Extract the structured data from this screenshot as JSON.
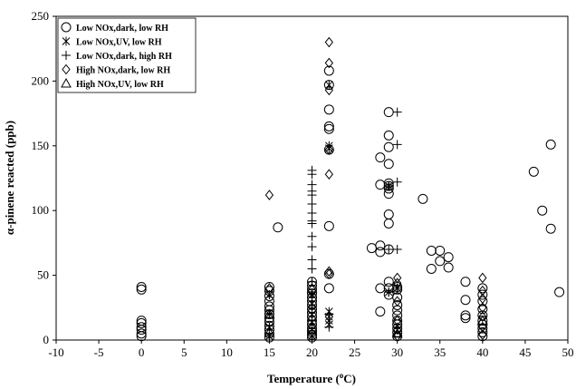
{
  "chart_data": {
    "type": "scatter",
    "xlabel_main": "Temperature (",
    "xlabel_sup": "o",
    "xlabel_end": "C)",
    "ylabel": "α-pinene reacted (ppb)",
    "xlim": [
      -10,
      50
    ],
    "ylim": [
      0,
      250
    ],
    "xticks": [
      -10,
      -5,
      0,
      5,
      10,
      15,
      20,
      25,
      30,
      35,
      40,
      45,
      50
    ],
    "yticks": [
      0,
      50,
      100,
      150,
      200,
      250
    ],
    "grid": false,
    "legend_position": "top-left",
    "series": [
      {
        "name": "Low NOx,dark, low RH",
        "marker": "circle",
        "points": [
          [
            0,
            3
          ],
          [
            0,
            5
          ],
          [
            0,
            8
          ],
          [
            0,
            10
          ],
          [
            0,
            13
          ],
          [
            0,
            15
          ],
          [
            0,
            39
          ],
          [
            0,
            41
          ],
          [
            15,
            2
          ],
          [
            15,
            5
          ],
          [
            15,
            8
          ],
          [
            15,
            11
          ],
          [
            15,
            14
          ],
          [
            15,
            17
          ],
          [
            15,
            20
          ],
          [
            15,
            23
          ],
          [
            15,
            26
          ],
          [
            15,
            30
          ],
          [
            15,
            34
          ],
          [
            15,
            38
          ],
          [
            15,
            41
          ],
          [
            16,
            87
          ],
          [
            20,
            2
          ],
          [
            20,
            4
          ],
          [
            20,
            6
          ],
          [
            20,
            9
          ],
          [
            20,
            12
          ],
          [
            20,
            15
          ],
          [
            20,
            18
          ],
          [
            20,
            21
          ],
          [
            20,
            24
          ],
          [
            20,
            27
          ],
          [
            20,
            30
          ],
          [
            20,
            33
          ],
          [
            20,
            36
          ],
          [
            20,
            39
          ],
          [
            20,
            42
          ],
          [
            20,
            45
          ],
          [
            22,
            40
          ],
          [
            22,
            51
          ],
          [
            22,
            88
          ],
          [
            22,
            147
          ],
          [
            22,
            163
          ],
          [
            22,
            165
          ],
          [
            22,
            178
          ],
          [
            22,
            197
          ],
          [
            22,
            208
          ],
          [
            28,
            22
          ],
          [
            28,
            40
          ],
          [
            28,
            68
          ],
          [
            28,
            73
          ],
          [
            28,
            120
          ],
          [
            28,
            141
          ],
          [
            29,
            35
          ],
          [
            29,
            40
          ],
          [
            29,
            45
          ],
          [
            29,
            70
          ],
          [
            29,
            90
          ],
          [
            29,
            97
          ],
          [
            29,
            113
          ],
          [
            29,
            117
          ],
          [
            29,
            121
          ],
          [
            29,
            136
          ],
          [
            29,
            149
          ],
          [
            29,
            158
          ],
          [
            29,
            176
          ],
          [
            27,
            71
          ],
          [
            29,
            119
          ],
          [
            30,
            3
          ],
          [
            30,
            6
          ],
          [
            30,
            9
          ],
          [
            30,
            12
          ],
          [
            30,
            15
          ],
          [
            30,
            19
          ],
          [
            30,
            23
          ],
          [
            30,
            27
          ],
          [
            30,
            33
          ],
          [
            30,
            39
          ],
          [
            30,
            41
          ],
          [
            33,
            109
          ],
          [
            34,
            55
          ],
          [
            34,
            69
          ],
          [
            35,
            61
          ],
          [
            35,
            69
          ],
          [
            36,
            56
          ],
          [
            36,
            64
          ],
          [
            38,
            17
          ],
          [
            38,
            19
          ],
          [
            38,
            31
          ],
          [
            38,
            45
          ],
          [
            40,
            3
          ],
          [
            40,
            6
          ],
          [
            40,
            9
          ],
          [
            40,
            12
          ],
          [
            40,
            15
          ],
          [
            40,
            19
          ],
          [
            40,
            24
          ],
          [
            40,
            30
          ],
          [
            40,
            35
          ],
          [
            40,
            40
          ],
          [
            46,
            130
          ],
          [
            47,
            100
          ],
          [
            48,
            86
          ],
          [
            48,
            151
          ],
          [
            49,
            37
          ]
        ]
      },
      {
        "name": "Low NOx,UV, low RH",
        "marker": "asterisk",
        "points": [
          [
            15,
            3
          ],
          [
            15,
            10
          ],
          [
            15,
            20
          ],
          [
            15,
            35
          ],
          [
            20,
            3
          ],
          [
            20,
            8
          ],
          [
            20,
            14
          ],
          [
            20,
            20
          ],
          [
            20,
            28
          ],
          [
            20,
            35
          ],
          [
            22,
            12
          ],
          [
            22,
            15
          ],
          [
            22,
            18
          ],
          [
            22,
            22
          ],
          [
            22,
            148
          ],
          [
            22,
            150
          ],
          [
            22,
            197
          ],
          [
            29,
            37
          ],
          [
            29,
            119
          ],
          [
            30,
            40
          ]
        ]
      },
      {
        "name": "Low NOx,dark, high RH",
        "marker": "plus",
        "points": [
          [
            20,
            5
          ],
          [
            20,
            15
          ],
          [
            20,
            25
          ],
          [
            20,
            35
          ],
          [
            20,
            45
          ],
          [
            20,
            55
          ],
          [
            20,
            62
          ],
          [
            20,
            72
          ],
          [
            20,
            80
          ],
          [
            20,
            90
          ],
          [
            20,
            92
          ],
          [
            20,
            98
          ],
          [
            20,
            105
          ],
          [
            20,
            112
          ],
          [
            20,
            115
          ],
          [
            20,
            120
          ],
          [
            20,
            128
          ],
          [
            20,
            131
          ],
          [
            22,
            10
          ],
          [
            22,
            20
          ],
          [
            29,
            37
          ],
          [
            29,
            70
          ],
          [
            29,
            119
          ],
          [
            30,
            70
          ],
          [
            30,
            122
          ],
          [
            30,
            151
          ],
          [
            30,
            176
          ],
          [
            30,
            40
          ],
          [
            30,
            10
          ]
        ]
      },
      {
        "name": "High NOx,dark, low RH",
        "marker": "diamond",
        "points": [
          [
            15,
            40
          ],
          [
            15,
            112
          ],
          [
            22,
            18
          ],
          [
            22,
            51
          ],
          [
            22,
            53
          ],
          [
            22,
            128
          ],
          [
            22,
            147
          ],
          [
            22,
            193
          ],
          [
            22,
            214
          ],
          [
            22,
            230
          ],
          [
            30,
            3
          ],
          [
            30,
            8
          ],
          [
            30,
            15
          ],
          [
            30,
            30
          ],
          [
            30,
            44
          ],
          [
            30,
            48
          ],
          [
            40,
            4
          ],
          [
            40,
            10
          ],
          [
            40,
            18
          ],
          [
            40,
            25
          ],
          [
            40,
            32
          ],
          [
            40,
            38
          ],
          [
            40,
            48
          ]
        ]
      },
      {
        "name": "High NOx,UV, low RH",
        "marker": "triangle",
        "points": [
          [
            15,
            6
          ],
          [
            15,
            20
          ],
          [
            20,
            10
          ],
          [
            20,
            40
          ],
          [
            30,
            5
          ],
          [
            40,
            15
          ]
        ]
      }
    ]
  }
}
